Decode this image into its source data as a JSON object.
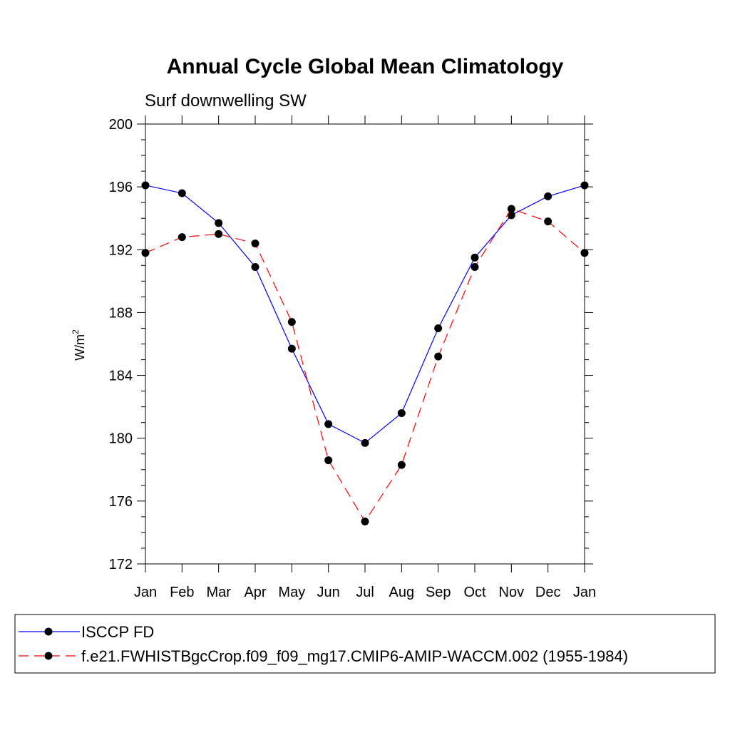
{
  "chart_data": {
    "type": "line",
    "title": "Annual Cycle Global Mean Climatology",
    "subtitle": "Surf downwelling SW",
    "xlabel": "",
    "ylabel": "W/m",
    "ylabel_superscript": "2",
    "categories": [
      "Jan",
      "Feb",
      "Mar",
      "Apr",
      "May",
      "Jun",
      "Jul",
      "Aug",
      "Sep",
      "Oct",
      "Nov",
      "Dec",
      "Jan"
    ],
    "ylim": [
      172,
      200
    ],
    "yticks": [
      "172",
      "176",
      "180",
      "184",
      "188",
      "192",
      "196",
      "200"
    ],
    "series": [
      {
        "name": "ISCCP FD",
        "color": "#0000ff",
        "dash": "solid",
        "values": [
          196.1,
          195.6,
          193.7,
          190.9,
          185.7,
          180.9,
          179.7,
          181.6,
          187.0,
          191.5,
          194.2,
          195.4,
          196.1
        ]
      },
      {
        "name": "f.e21.FWHISTBgcCrop.f09_f09_mg17.CMIP6-AMIP-WACCM.002 (1955-1984)",
        "color": "#ff0000",
        "dash": "dashed",
        "values": [
          191.8,
          192.8,
          193.0,
          192.4,
          187.4,
          178.6,
          174.7,
          178.3,
          185.2,
          190.9,
          194.6,
          193.8,
          191.8
        ]
      }
    ],
    "legend_position": "bottom"
  }
}
